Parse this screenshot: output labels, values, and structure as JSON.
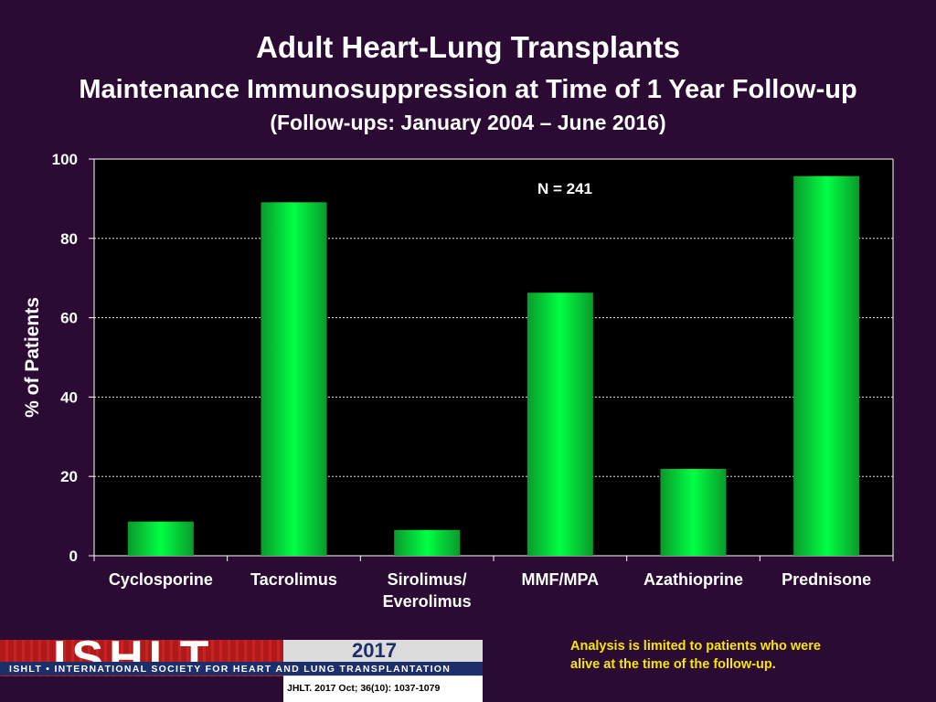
{
  "header": {
    "title": "Adult Heart-Lung Transplants",
    "subtitle": "Maintenance Immunosuppression at Time of 1 Year Follow-up",
    "period": "(Follow-ups: January 2004 – June 2016)"
  },
  "chart_data": {
    "type": "bar",
    "ylabel": "% of Patients",
    "xlabel": "",
    "ylim": [
      0,
      100
    ],
    "yticks": [
      0,
      20,
      40,
      60,
      80,
      100
    ],
    "grid": true,
    "annotation": "N = 241",
    "categories": [
      [
        "Cyclosporine"
      ],
      [
        "Tacrolimus"
      ],
      [
        "Sirolimus/",
        "Everolimus"
      ],
      [
        "MMF/MPA"
      ],
      [
        "Azathioprine"
      ],
      [
        "Prednisone"
      ]
    ],
    "values": [
      8.6,
      89.1,
      6.5,
      66.3,
      21.9,
      95.7
    ],
    "colors": {
      "bar_center": "#00ff44",
      "bar_edge": "#0a9a2a",
      "plot_bg": "#000000",
      "grid": "#ffffff"
    }
  },
  "footer": {
    "note_line1": "Analysis is limited to patients who were",
    "note_line2": "alive at the time of the follow-up.",
    "logo_letters": "ISHLT",
    "logo_tagline": "ISHLT • INTERNATIONAL SOCIETY FOR HEART AND LUNG TRANSPLANTATION",
    "year": "2017",
    "citation": "JHLT. 2017 Oct; 36(10): 1037-1079"
  }
}
